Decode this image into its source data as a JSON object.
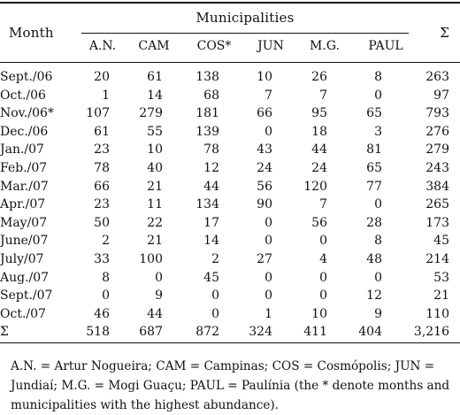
{
  "header": {
    "month": "Month",
    "group": "Municipalities",
    "sigma": "Σ",
    "columns": [
      "A.N.",
      "CAM",
      "COS*",
      "JUN",
      "M.G.",
      "PAUL"
    ]
  },
  "rows": [
    {
      "month": "Sept./06",
      "values": [
        "20",
        "61",
        "138",
        "10",
        "26",
        "8",
        "263"
      ]
    },
    {
      "month": "Oct./06",
      "values": [
        "1",
        "14",
        "68",
        "7",
        "7",
        "0",
        "97"
      ]
    },
    {
      "month": "Nov./06*",
      "values": [
        "107",
        "279",
        "181",
        "66",
        "95",
        "65",
        "793"
      ]
    },
    {
      "month": "Dec./06",
      "values": [
        "61",
        "55",
        "139",
        "0",
        "18",
        "3",
        "276"
      ]
    },
    {
      "month": "Jan./07",
      "values": [
        "23",
        "10",
        "78",
        "43",
        "44",
        "81",
        "279"
      ]
    },
    {
      "month": "Feb./07",
      "values": [
        "78",
        "40",
        "12",
        "24",
        "24",
        "65",
        "243"
      ]
    },
    {
      "month": "Mar./07",
      "values": [
        "66",
        "21",
        "44",
        "56",
        "120",
        "77",
        "384"
      ]
    },
    {
      "month": "Apr./07",
      "values": [
        "23",
        "11",
        "134",
        "90",
        "7",
        "0",
        "265"
      ]
    },
    {
      "month": "May/07",
      "values": [
        "50",
        "22",
        "17",
        "0",
        "56",
        "28",
        "173"
      ]
    },
    {
      "month": "June/07",
      "values": [
        "2",
        "21",
        "14",
        "0",
        "0",
        "8",
        "45"
      ]
    },
    {
      "month": "July/07",
      "values": [
        "33",
        "100",
        "2",
        "27",
        "4",
        "48",
        "214"
      ]
    },
    {
      "month": "Aug./07",
      "values": [
        "8",
        "0",
        "45",
        "0",
        "0",
        "0",
        "53"
      ]
    },
    {
      "month": "Sept./07",
      "values": [
        "0",
        "9",
        "0",
        "0",
        "0",
        "12",
        "21"
      ]
    },
    {
      "month": "Oct./07",
      "values": [
        "46",
        "44",
        "0",
        "1",
        "10",
        "9",
        "110"
      ]
    },
    {
      "month": "Σ",
      "values": [
        "518",
        "687",
        "872",
        "324",
        "411",
        "404",
        "3,216"
      ]
    }
  ],
  "footnote": "A.N. = Artur Nogueira; CAM = Campinas; COS = Cosmópolis; JUN = Jundiaí; M.G. = Mogi Guaçu; PAUL = Paulínia (the * denote months and municipalities with the highest abundance)."
}
